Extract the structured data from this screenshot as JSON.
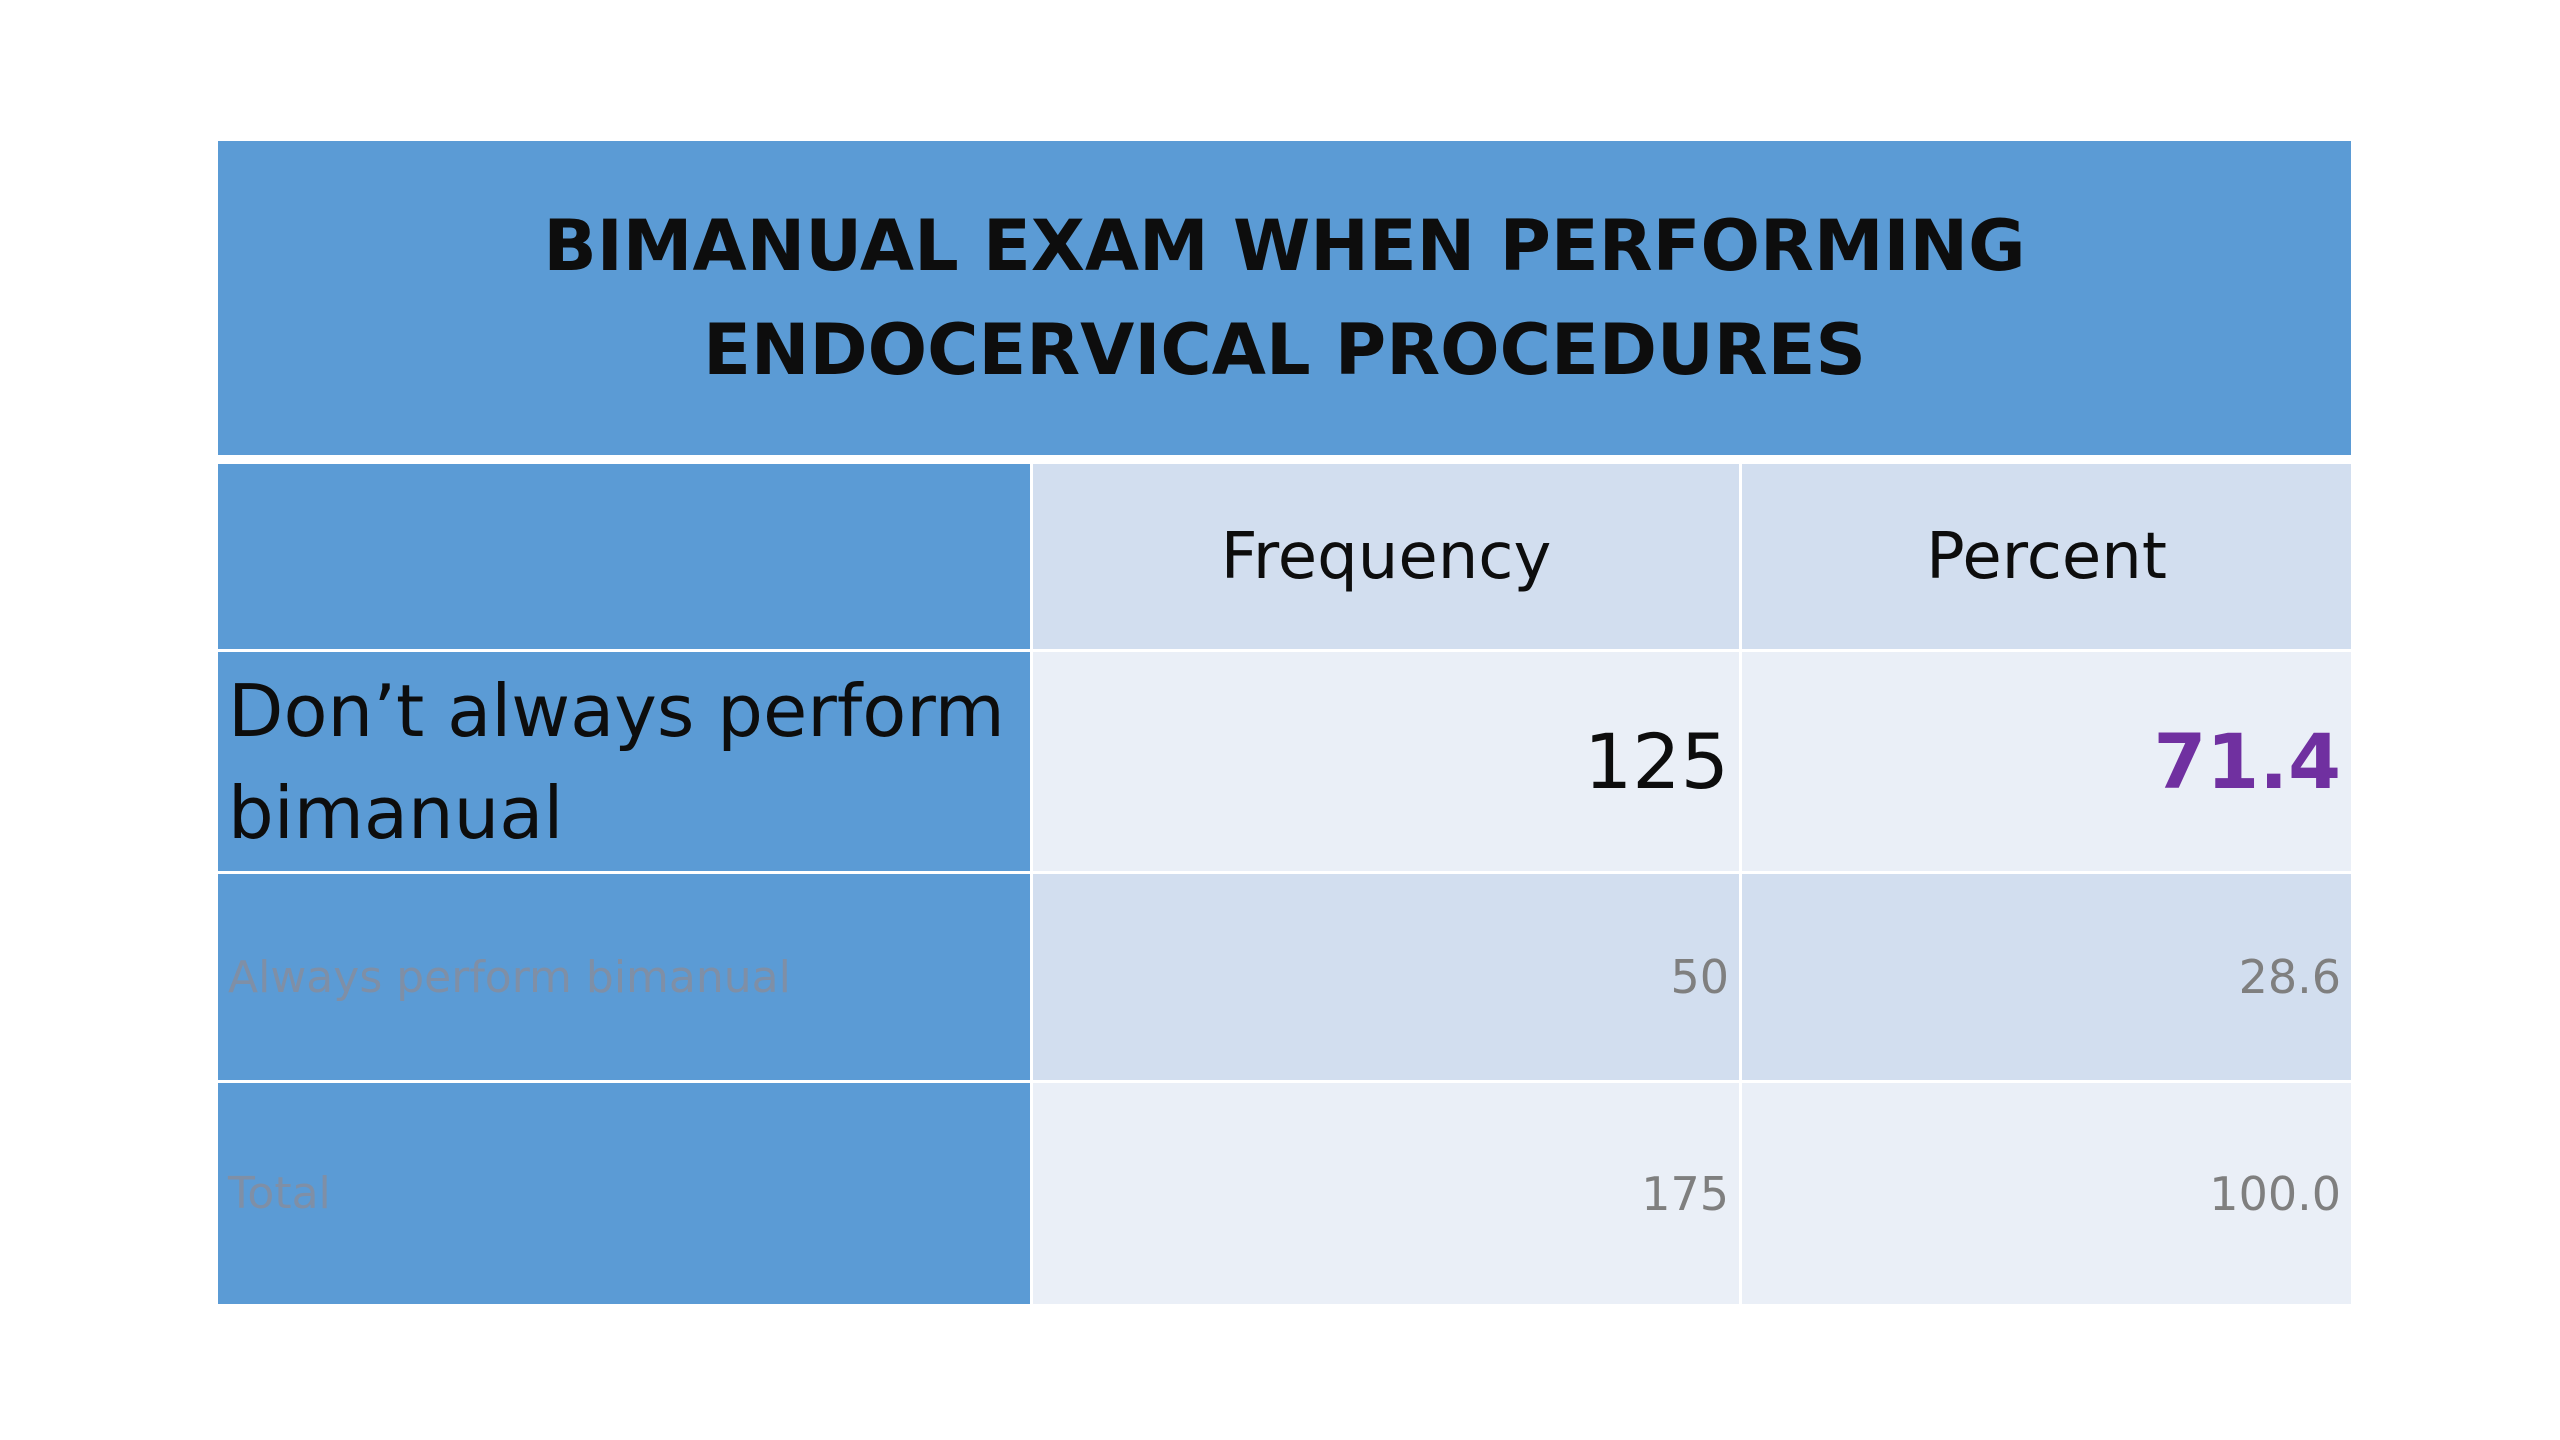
{
  "title": "BIMANUAL EXAM WHEN PERFORMING ENDOCERVICAL PROCEDURES",
  "table": {
    "headers": [
      "",
      "Frequency",
      "Percent"
    ],
    "rows": [
      {
        "label": "Don’t always perform bimanual",
        "frequency": "125",
        "percent": "71.4"
      },
      {
        "label": "Always perform bimanual",
        "frequency": "50",
        "percent": "28.6"
      },
      {
        "label": "Total",
        "frequency": "175",
        "percent": "100.0"
      }
    ]
  },
  "colors": {
    "header_band": "#5b9bd5",
    "cell_light": "#eaeff7",
    "cell_mid": "#d2deef",
    "accent_percent": "#7030a0",
    "muted_text": "#7f7f7f"
  }
}
